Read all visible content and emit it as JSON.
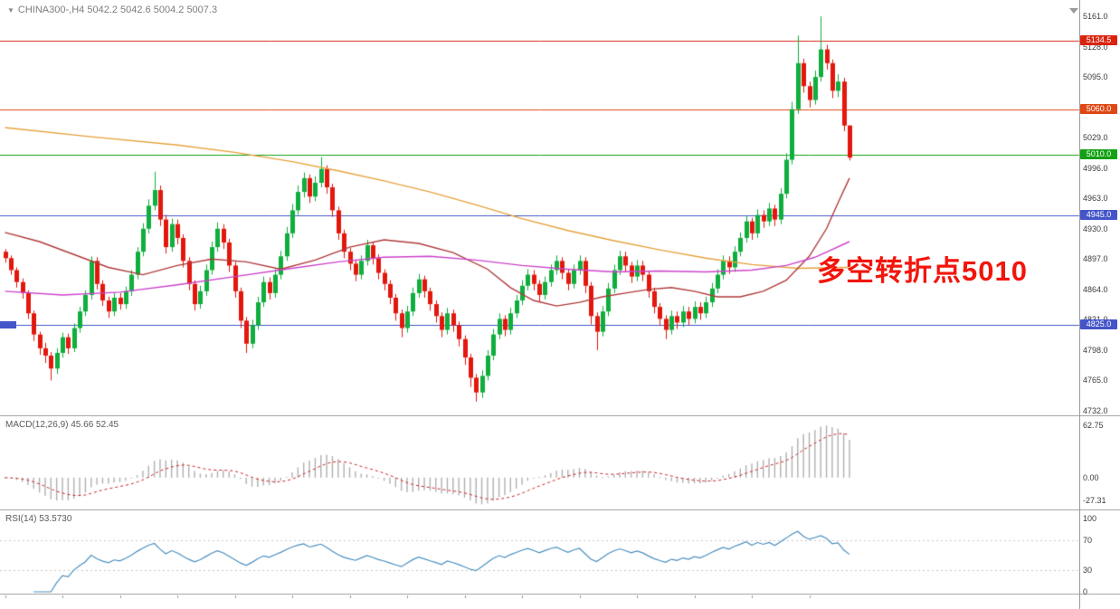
{
  "header": {
    "collapse_icon": "▼",
    "symbol_info": "CHINA300-,H4  5042.2 5042.6 5004.2 5007.3"
  },
  "annotation": {
    "text": "多空转折点5010",
    "color": "#f2150c"
  },
  "chart_data": {
    "type": "candlestick",
    "symbol": "CHINA300-",
    "timeframe": "H4",
    "last_bar": {
      "open": 5042.2,
      "high": 5042.6,
      "low": 5004.2,
      "close": 5007.3
    },
    "ylim": [
      4732,
      5161
    ],
    "y_ticks": [
      5161,
      5128,
      5095,
      5062,
      5029,
      4996,
      4963,
      4930,
      4897,
      4864,
      4831,
      4798,
      4765,
      4732
    ],
    "colors": {
      "bull": "#0fae3d",
      "bear": "#e3170d"
    },
    "h_lines": [
      {
        "price": 5134.5,
        "label": "5134.5",
        "color": "#d9230f"
      },
      {
        "price": 5060.0,
        "label": "5060.0",
        "color": "#dd4814"
      },
      {
        "price": 5010.0,
        "label": "5010.0",
        "color": "#13a113"
      },
      {
        "price": 4945.0,
        "label": "4945.0",
        "color": "#4355c8"
      },
      {
        "price": 4825.0,
        "label": "4825.0",
        "color": "#4355c8",
        "left_marker": true
      }
    ],
    "candles": [
      [
        4905,
        4908,
        4893,
        4898
      ],
      [
        4898,
        4901,
        4880,
        4885
      ],
      [
        4885,
        4888,
        4866,
        4872
      ],
      [
        4872,
        4876,
        4854,
        4860
      ],
      [
        4860,
        4863,
        4832,
        4838
      ],
      [
        4838,
        4841,
        4808,
        4815
      ],
      [
        4815,
        4818,
        4793,
        4800
      ],
      [
        4800,
        4806,
        4784,
        4792
      ],
      [
        4792,
        4796,
        4765,
        4778
      ],
      [
        4778,
        4800,
        4772,
        4795
      ],
      [
        4795,
        4817,
        4790,
        4812
      ],
      [
        4812,
        4816,
        4794,
        4800
      ],
      [
        4800,
        4827,
        4796,
        4822
      ],
      [
        4822,
        4845,
        4817,
        4840
      ],
      [
        4840,
        4863,
        4835,
        4858
      ],
      [
        4858,
        4900,
        4853,
        4895
      ],
      [
        4895,
        4899,
        4864,
        4870
      ],
      [
        4870,
        4874,
        4846,
        4852
      ],
      [
        4852,
        4856,
        4833,
        4840
      ],
      [
        4840,
        4860,
        4835,
        4855
      ],
      [
        4855,
        4860,
        4842,
        4848
      ],
      [
        4848,
        4867,
        4843,
        4862
      ],
      [
        4862,
        4885,
        4857,
        4880
      ],
      [
        4880,
        4910,
        4875,
        4905
      ],
      [
        4905,
        4936,
        4900,
        4930
      ],
      [
        4930,
        4962,
        4925,
        4955
      ],
      [
        4955,
        4992,
        4950,
        4972
      ],
      [
        4972,
        4977,
        4933,
        4940
      ],
      [
        4940,
        4945,
        4903,
        4910
      ],
      [
        4910,
        4941,
        4905,
        4935
      ],
      [
        4935,
        4940,
        4913,
        4920
      ],
      [
        4920,
        4924,
        4888,
        4895
      ],
      [
        4895,
        4899,
        4863,
        4870
      ],
      [
        4870,
        4874,
        4841,
        4848
      ],
      [
        4848,
        4868,
        4843,
        4862
      ],
      [
        4862,
        4891,
        4857,
        4885
      ],
      [
        4885,
        4916,
        4880,
        4910
      ],
      [
        4910,
        4937,
        4905,
        4930
      ],
      [
        4930,
        4935,
        4908,
        4915
      ],
      [
        4915,
        4919,
        4883,
        4890
      ],
      [
        4890,
        4894,
        4855,
        4862
      ],
      [
        4862,
        4866,
        4822,
        4830
      ],
      [
        4830,
        4834,
        4795,
        4805
      ],
      [
        4805,
        4831,
        4800,
        4825
      ],
      [
        4825,
        4856,
        4820,
        4850
      ],
      [
        4850,
        4878,
        4845,
        4872
      ],
      [
        4872,
        4877,
        4853,
        4860
      ],
      [
        4860,
        4886,
        4855,
        4880
      ],
      [
        4880,
        4906,
        4875,
        4900
      ],
      [
        4900,
        4932,
        4895,
        4925
      ],
      [
        4925,
        4957,
        4920,
        4950
      ],
      [
        4950,
        4977,
        4945,
        4970
      ],
      [
        4970,
        4991,
        4964,
        4985
      ],
      [
        4985,
        4989,
        4958,
        4965
      ],
      [
        4965,
        4987,
        4960,
        4980
      ],
      [
        4980,
        5008,
        4975,
        4995
      ],
      [
        4995,
        4999,
        4968,
        4975
      ],
      [
        4975,
        4979,
        4943,
        4950
      ],
      [
        4950,
        4954,
        4918,
        4925
      ],
      [
        4925,
        4929,
        4898,
        4905
      ],
      [
        4905,
        4909,
        4885,
        4892
      ],
      [
        4892,
        4896,
        4873,
        4880
      ],
      [
        4880,
        4901,
        4875,
        4895
      ],
      [
        4895,
        4918,
        4890,
        4912
      ],
      [
        4912,
        4916,
        4891,
        4898
      ],
      [
        4898,
        4902,
        4875,
        4882
      ],
      [
        4882,
        4886,
        4863,
        4870
      ],
      [
        4870,
        4874,
        4848,
        4855
      ],
      [
        4855,
        4859,
        4830,
        4838
      ],
      [
        4838,
        4842,
        4812,
        4822
      ],
      [
        4822,
        4846,
        4817,
        4840
      ],
      [
        4840,
        4866,
        4835,
        4860
      ],
      [
        4860,
        4881,
        4855,
        4875
      ],
      [
        4875,
        4879,
        4855,
        4862
      ],
      [
        4862,
        4866,
        4841,
        4848
      ],
      [
        4848,
        4852,
        4828,
        4835
      ],
      [
        4835,
        4839,
        4812,
        4820
      ],
      [
        4820,
        4844,
        4815,
        4838
      ],
      [
        4838,
        4842,
        4818,
        4825
      ],
      [
        4825,
        4829,
        4802,
        4810
      ],
      [
        4810,
        4814,
        4782,
        4790
      ],
      [
        4790,
        4794,
        4758,
        4768
      ],
      [
        4768,
        4772,
        4742,
        4752
      ],
      [
        4752,
        4776,
        4746,
        4770
      ],
      [
        4770,
        4798,
        4765,
        4792
      ],
      [
        4792,
        4821,
        4787,
        4815
      ],
      [
        4815,
        4838,
        4810,
        4832
      ],
      [
        4832,
        4836,
        4813,
        4820
      ],
      [
        4820,
        4844,
        4815,
        4838
      ],
      [
        4838,
        4858,
        4833,
        4852
      ],
      [
        4852,
        4874,
        4847,
        4868
      ],
      [
        4868,
        4886,
        4863,
        4880
      ],
      [
        4880,
        4885,
        4863,
        4870
      ],
      [
        4870,
        4874,
        4851,
        4858
      ],
      [
        4858,
        4878,
        4853,
        4872
      ],
      [
        4872,
        4891,
        4867,
        4885
      ],
      [
        4885,
        4901,
        4880,
        4895
      ],
      [
        4895,
        4899,
        4875,
        4882
      ],
      [
        4882,
        4886,
        4863,
        4870
      ],
      [
        4870,
        4891,
        4865,
        4885
      ],
      [
        4885,
        4901,
        4880,
        4895
      ],
      [
        4895,
        4899,
        4860,
        4868
      ],
      [
        4868,
        4872,
        4826,
        4835
      ],
      [
        4835,
        4839,
        4798,
        4818
      ],
      [
        4818,
        4846,
        4813,
        4840
      ],
      [
        4840,
        4871,
        4835,
        4865
      ],
      [
        4865,
        4891,
        4860,
        4885
      ],
      [
        4885,
        4906,
        4880,
        4900
      ],
      [
        4900,
        4905,
        4883,
        4890
      ],
      [
        4890,
        4894,
        4871,
        4878
      ],
      [
        4878,
        4896,
        4873,
        4890
      ],
      [
        4890,
        4895,
        4873,
        4880
      ],
      [
        4880,
        4884,
        4855,
        4862
      ],
      [
        4862,
        4866,
        4838,
        4845
      ],
      [
        4845,
        4849,
        4825,
        4832
      ],
      [
        4832,
        4836,
        4810,
        4820
      ],
      [
        4820,
        4841,
        4815,
        4835
      ],
      [
        4835,
        4840,
        4821,
        4828
      ],
      [
        4828,
        4846,
        4823,
        4840
      ],
      [
        4840,
        4845,
        4825,
        4832
      ],
      [
        4832,
        4851,
        4827,
        4845
      ],
      [
        4845,
        4850,
        4831,
        4838
      ],
      [
        4838,
        4856,
        4833,
        4850
      ],
      [
        4850,
        4871,
        4845,
        4865
      ],
      [
        4865,
        4886,
        4860,
        4880
      ],
      [
        4880,
        4901,
        4875,
        4895
      ],
      [
        4895,
        4900,
        4881,
        4888
      ],
      [
        4888,
        4911,
        4883,
        4905
      ],
      [
        4905,
        4926,
        4900,
        4920
      ],
      [
        4920,
        4944,
        4915,
        4938
      ],
      [
        4938,
        4942,
        4918,
        4925
      ],
      [
        4925,
        4951,
        4920,
        4945
      ],
      [
        4945,
        4950,
        4931,
        4938
      ],
      [
        4938,
        4958,
        4933,
        4952
      ],
      [
        4952,
        4956,
        4933,
        4940
      ],
      [
        4940,
        4974,
        4935,
        4968
      ],
      [
        4968,
        5012,
        4963,
        5005
      ],
      [
        5005,
        5068,
        5000,
        5060
      ],
      [
        5060,
        5140,
        5055,
        5110
      ],
      [
        5110,
        5115,
        5078,
        5085
      ],
      [
        5085,
        5090,
        5062,
        5070
      ],
      [
        5070,
        5102,
        5065,
        5095
      ],
      [
        5095,
        5161,
        5090,
        5125
      ],
      [
        5125,
        5130,
        5103,
        5110
      ],
      [
        5110,
        5114,
        5072,
        5080
      ],
      [
        5080,
        5098,
        5073,
        5090
      ],
      [
        5090,
        5094,
        5036,
        5042.2
      ],
      [
        5042.2,
        5042.6,
        5004.2,
        5007.3
      ]
    ],
    "moving_averages": [
      {
        "name": "ma-slow-orange",
        "color": "#e6a23c",
        "points": [
          [
            0,
            5040
          ],
          [
            15,
            5030
          ],
          [
            30,
            5021
          ],
          [
            40,
            5013
          ],
          [
            50,
            5003
          ],
          [
            58,
            4993
          ],
          [
            66,
            4982
          ],
          [
            74,
            4970
          ],
          [
            82,
            4956
          ],
          [
            90,
            4941
          ],
          [
            98,
            4928
          ],
          [
            106,
            4917
          ],
          [
            114,
            4907
          ],
          [
            122,
            4898
          ],
          [
            130,
            4891
          ],
          [
            138,
            4887
          ],
          [
            147,
            4888
          ]
        ]
      },
      {
        "name": "ma-mid-darkred",
        "color": "#b03a3a",
        "points": [
          [
            0,
            4926
          ],
          [
            6,
            4916
          ],
          [
            12,
            4902
          ],
          [
            18,
            4888
          ],
          [
            24,
            4880
          ],
          [
            30,
            4890
          ],
          [
            36,
            4897
          ],
          [
            42,
            4894
          ],
          [
            48,
            4886
          ],
          [
            54,
            4896
          ],
          [
            60,
            4910
          ],
          [
            66,
            4918
          ],
          [
            72,
            4914
          ],
          [
            78,
            4904
          ],
          [
            84,
            4886
          ],
          [
            88,
            4866
          ],
          [
            92,
            4852
          ],
          [
            96,
            4846
          ],
          [
            100,
            4850
          ],
          [
            104,
            4856
          ],
          [
            108,
            4860
          ],
          [
            112,
            4864
          ],
          [
            116,
            4866
          ],
          [
            120,
            4862
          ],
          [
            124,
            4856
          ],
          [
            128,
            4856
          ],
          [
            132,
            4862
          ],
          [
            136,
            4874
          ],
          [
            140,
            4900
          ],
          [
            143,
            4930
          ],
          [
            145,
            4958
          ],
          [
            147,
            4985
          ]
        ]
      },
      {
        "name": "ma-long-magenta",
        "color": "#cc44cc",
        "points": [
          [
            0,
            4862
          ],
          [
            10,
            4858
          ],
          [
            20,
            4861
          ],
          [
            30,
            4869
          ],
          [
            40,
            4878
          ],
          [
            50,
            4887
          ],
          [
            58,
            4894
          ],
          [
            66,
            4899
          ],
          [
            74,
            4900
          ],
          [
            82,
            4896
          ],
          [
            90,
            4890
          ],
          [
            98,
            4886
          ],
          [
            106,
            4883
          ],
          [
            114,
            4884
          ],
          [
            122,
            4883
          ],
          [
            130,
            4885
          ],
          [
            136,
            4890
          ],
          [
            141,
            4899
          ],
          [
            147,
            4916
          ]
        ]
      }
    ],
    "indicators": {
      "macd": {
        "label": "MACD(12,26,9) 45.66 52.45",
        "params": [
          12,
          26,
          9
        ],
        "range": [
          -27.31,
          62.75
        ],
        "axis": [
          {
            "v": 62.75,
            "t": "62.75"
          },
          {
            "v": 0,
            "t": "0.00"
          },
          {
            "v": -27.31,
            "t": "-27.31"
          }
        ],
        "hist_color": "#b0b0b0",
        "signal_color": "#cc2222"
      },
      "rsi": {
        "label": "RSI(14) 53.5730",
        "period": 14,
        "range": [
          0,
          100
        ],
        "axis": [
          {
            "v": 100,
            "t": "100"
          },
          {
            "v": 70,
            "t": "70"
          },
          {
            "v": 30,
            "t": "30"
          },
          {
            "v": 0,
            "t": "0"
          }
        ],
        "levels": [
          70,
          30
        ],
        "color": "#4a8fc0"
      }
    }
  }
}
